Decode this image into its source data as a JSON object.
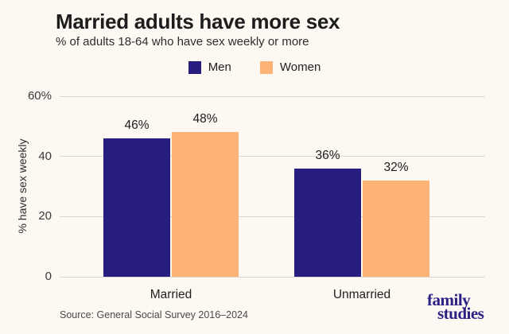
{
  "page": {
    "background": "#fdf8f1"
  },
  "header": {
    "title": "Married adults have more sex",
    "subtitle": "% of adults 18-64 who have sex weekly or more"
  },
  "legend": [
    {
      "label": "Men",
      "color": "#271d7e"
    },
    {
      "label": "Women",
      "color": "#fdb375"
    }
  ],
  "chart_data": {
    "type": "bar",
    "categories": [
      "Married",
      "Unmarried"
    ],
    "series": [
      {
        "name": "Men",
        "color": "#271d7e",
        "values": [
          46,
          36
        ]
      },
      {
        "name": "Women",
        "color": "#fdb375",
        "values": [
          48,
          32
        ]
      }
    ],
    "value_labels": [
      [
        "46%",
        "48%"
      ],
      [
        "36%",
        "32%"
      ]
    ],
    "title": "Married adults have more sex",
    "subtitle": "% of adults 18-64 who have sex weekly or more",
    "xlabel": "",
    "ylabel": "% have sex weekly",
    "ylim": [
      0,
      60
    ],
    "yticks": [
      {
        "value": 0,
        "label": "0"
      },
      {
        "value": 20,
        "label": "20"
      },
      {
        "value": 40,
        "label": "40"
      },
      {
        "value": 60,
        "label": "60%"
      }
    ],
    "grid": true,
    "gridline_color": "#ddd6cf",
    "legend_position": "top"
  },
  "footer": {
    "source": "Source: General Social Survey 2016–2024"
  },
  "logo": {
    "line1": "family",
    "line2": "studies",
    "color": "#2b2185"
  }
}
